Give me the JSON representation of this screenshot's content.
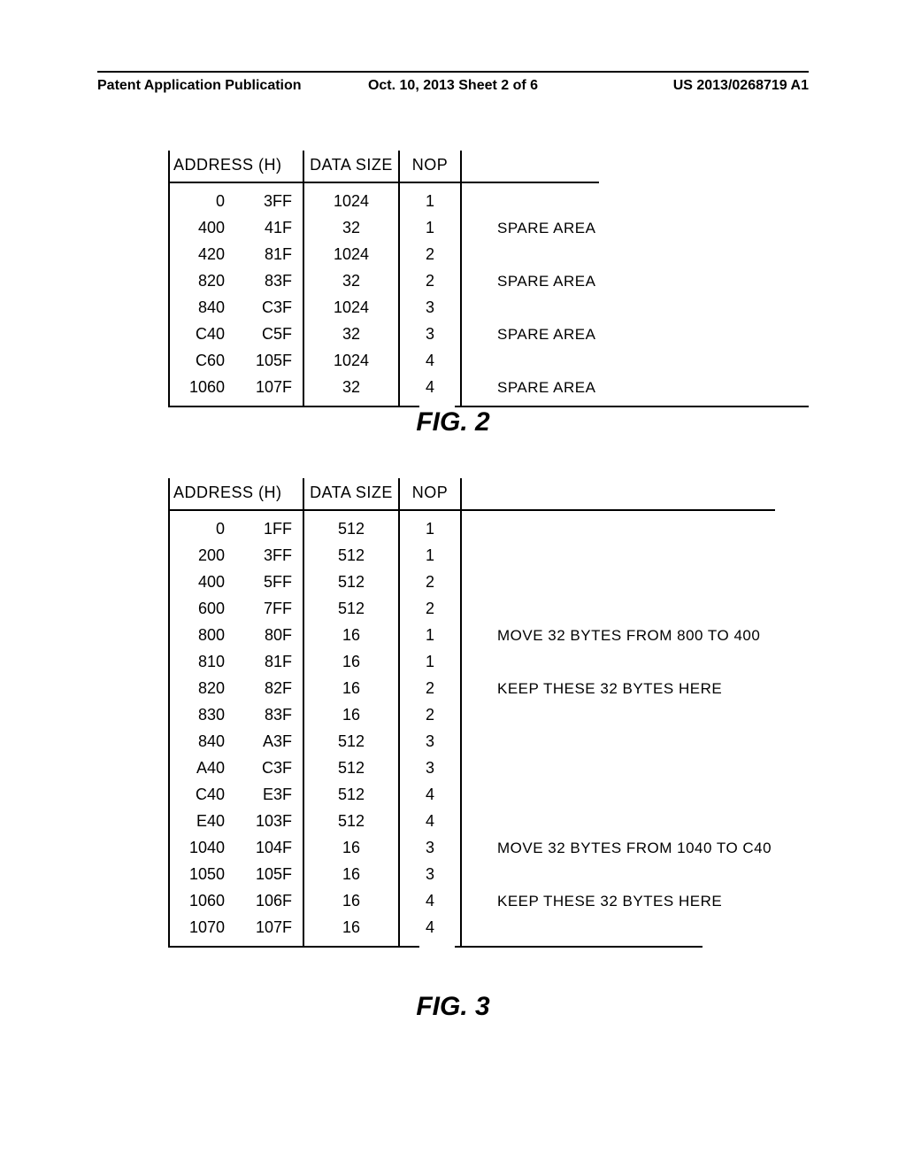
{
  "header": {
    "left": "Patent Application Publication",
    "center": "Oct. 10, 2013  Sheet 2 of 6",
    "right": "US 2013/0268719 A1"
  },
  "figure2": {
    "caption": "FIG. 2",
    "headers": {
      "addr": "ADDRESS (H)",
      "size": "DATA SIZE",
      "nop": "NOP"
    },
    "rows": [
      {
        "a": "0",
        "b": "3FF",
        "size": "1024",
        "nop": "1",
        "note": ""
      },
      {
        "a": "400",
        "b": "41F",
        "size": "32",
        "nop": "1",
        "note": "SPARE AREA"
      },
      {
        "a": "420",
        "b": "81F",
        "size": "1024",
        "nop": "2",
        "note": ""
      },
      {
        "a": "820",
        "b": "83F",
        "size": "32",
        "nop": "2",
        "note": "SPARE AREA"
      },
      {
        "a": "840",
        "b": "C3F",
        "size": "1024",
        "nop": "3",
        "note": ""
      },
      {
        "a": "C40",
        "b": "C5F",
        "size": "32",
        "nop": "3",
        "note": "SPARE AREA"
      },
      {
        "a": "C60",
        "b": "105F",
        "size": "1024",
        "nop": "4",
        "note": ""
      },
      {
        "a": "1060",
        "b": "107F",
        "size": "32",
        "nop": "4",
        "note": "SPARE AREA"
      }
    ]
  },
  "figure3": {
    "caption": "FIG. 3",
    "headers": {
      "addr": "ADDRESS (H)",
      "size": "DATA SIZE",
      "nop": "NOP"
    },
    "rows": [
      {
        "a": "0",
        "b": "1FF",
        "size": "512",
        "nop": "1",
        "note": ""
      },
      {
        "a": "200",
        "b": "3FF",
        "size": "512",
        "nop": "1",
        "note": ""
      },
      {
        "a": "400",
        "b": "5FF",
        "size": "512",
        "nop": "2",
        "note": ""
      },
      {
        "a": "600",
        "b": "7FF",
        "size": "512",
        "nop": "2",
        "note": ""
      },
      {
        "a": "800",
        "b": "80F",
        "size": "16",
        "nop": "1",
        "note": "MOVE 32 BYTES FROM 800 TO 400"
      },
      {
        "a": "810",
        "b": "81F",
        "size": "16",
        "nop": "1",
        "note": ""
      },
      {
        "a": "820",
        "b": "82F",
        "size": "16",
        "nop": "2",
        "note": "KEEP THESE 32 BYTES HERE"
      },
      {
        "a": "830",
        "b": "83F",
        "size": "16",
        "nop": "2",
        "note": ""
      },
      {
        "a": "840",
        "b": "A3F",
        "size": "512",
        "nop": "3",
        "note": ""
      },
      {
        "a": "A40",
        "b": "C3F",
        "size": "512",
        "nop": "3",
        "note": ""
      },
      {
        "a": "C40",
        "b": "E3F",
        "size": "512",
        "nop": "4",
        "note": ""
      },
      {
        "a": "E40",
        "b": "103F",
        "size": "512",
        "nop": "4",
        "note": ""
      },
      {
        "a": "1040",
        "b": "104F",
        "size": "16",
        "nop": "3",
        "note": "MOVE 32 BYTES FROM 1040 TO C40"
      },
      {
        "a": "1050",
        "b": "105F",
        "size": "16",
        "nop": "3",
        "note": ""
      },
      {
        "a": "1060",
        "b": "106F",
        "size": "16",
        "nop": "4",
        "note": "KEEP THESE 32 BYTES HERE"
      },
      {
        "a": "1070",
        "b": "107F",
        "size": "16",
        "nop": "4",
        "note": ""
      }
    ]
  }
}
